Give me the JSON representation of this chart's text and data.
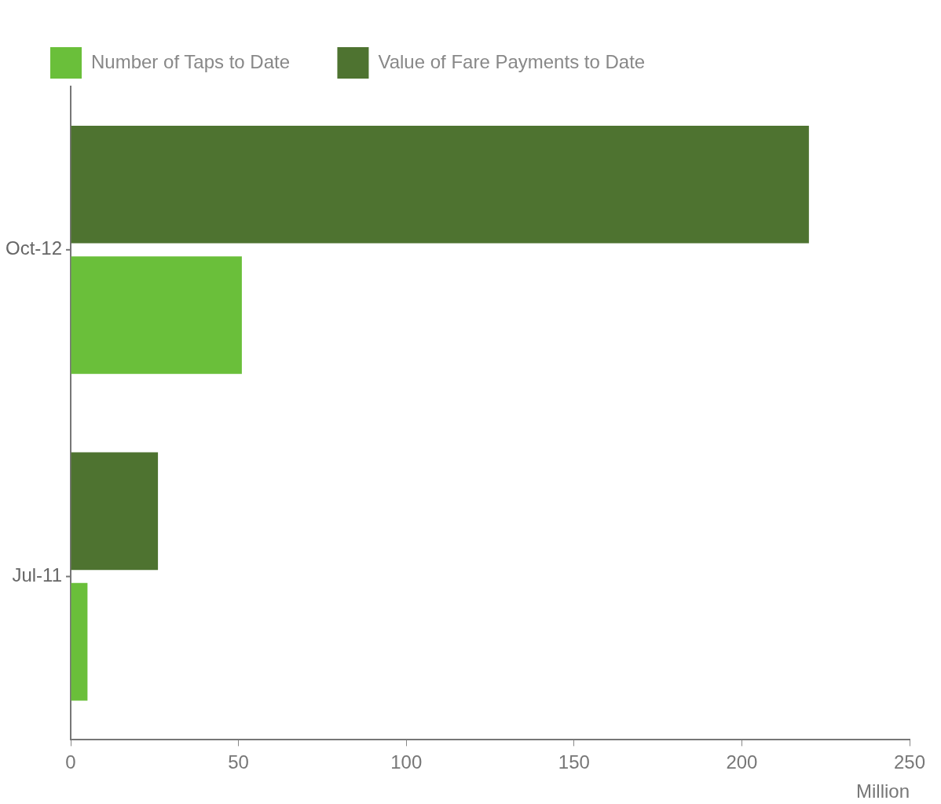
{
  "chart_data": {
    "type": "bar",
    "orientation": "horizontal",
    "categories": [
      "Oct-12",
      "Jul-11"
    ],
    "series": [
      {
        "name": "Number of Taps to Date",
        "color": "#6abf3a",
        "values": [
          51,
          5
        ]
      },
      {
        "name": "Value of Fare Payments to Date",
        "color": "#4e7330",
        "values": [
          220,
          26
        ]
      }
    ],
    "xlabel": "Million",
    "xlim": [
      0,
      250
    ],
    "xticks": [
      0,
      50,
      100,
      150,
      200,
      250
    ],
    "grid": false,
    "legend": "top left"
  }
}
